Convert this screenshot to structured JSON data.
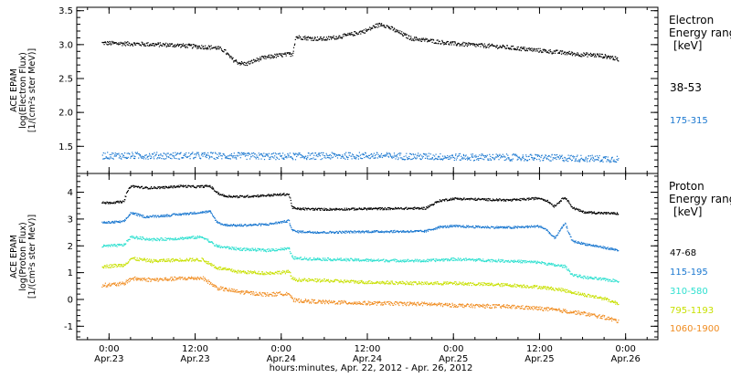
{
  "figure": {
    "xlabel": "hours:minutes, Apr. 22, 2012 - Apr. 26, 2012",
    "x_tick_times": [
      "0:00",
      "12:00",
      "0:00",
      "12:00",
      "0:00",
      "12:00",
      "0:00"
    ],
    "x_tick_dates": [
      "Apr.23",
      "Apr.23",
      "Apr.24",
      "Apr.24",
      "Apr.25",
      "Apr.25",
      "Apr.26"
    ],
    "x_tick_hours": [
      0,
      12,
      24,
      36,
      48,
      60,
      72
    ]
  },
  "chart_data": [
    {
      "type": "scatter",
      "panel": "electron",
      "ylabel_lines": [
        "ACE EPAM",
        "log(Electron Flux)",
        "[1/(cm²s ster MeV)]"
      ],
      "ylim": [
        1.1,
        3.55
      ],
      "y_ticks": [
        1.5,
        2.0,
        2.5,
        3.0,
        3.5
      ],
      "y_tick_labels": [
        "1.5",
        "2.0",
        "2.5",
        "3.0",
        "3.5"
      ],
      "xlim_hours": [
        -4.5,
        76.5
      ],
      "legend_title": [
        "Electron",
        "Energy ranges",
        "[keV]"
      ],
      "series": [
        {
          "name": "38-53",
          "color": "#000000",
          "x_hours": [
            -1,
            3,
            6,
            9,
            12,
            15,
            16,
            17,
            18,
            19,
            20,
            21,
            22,
            23,
            25.5,
            26,
            28,
            30,
            33,
            36,
            37,
            38,
            39,
            42,
            48,
            54,
            60,
            64,
            66,
            68,
            70,
            71
          ],
          "y": [
            3.03,
            3.02,
            3.01,
            3.0,
            2.98,
            2.96,
            2.92,
            2.8,
            2.74,
            2.72,
            2.76,
            2.8,
            2.82,
            2.84,
            2.87,
            3.12,
            3.1,
            3.09,
            3.14,
            3.22,
            3.28,
            3.31,
            3.26,
            3.1,
            3.02,
            2.98,
            2.92,
            2.88,
            2.86,
            2.85,
            2.82,
            2.78
          ],
          "scatter": 0.03
        },
        {
          "name": "175-315",
          "color": "#1b78d0",
          "x_hours": [
            -1,
            12,
            24,
            36,
            48,
            60,
            66,
            71
          ],
          "y": [
            1.37,
            1.37,
            1.36,
            1.37,
            1.35,
            1.34,
            1.33,
            1.32
          ],
          "scatter": 0.05
        }
      ]
    },
    {
      "type": "scatter",
      "panel": "proton",
      "ylabel_lines": [
        "ACE EPAM",
        "log(Proton Flux)",
        "[1/(cm²s ster MeV)]"
      ],
      "ylim": [
        -1.5,
        4.7
      ],
      "y_ticks": [
        -1,
        0,
        1,
        2,
        3,
        4
      ],
      "y_tick_labels": [
        "-1",
        "0",
        "1",
        "2",
        "3",
        "4"
      ],
      "xlim_hours": [
        -4.5,
        76.5
      ],
      "legend_title": [
        "Proton",
        "Energy ranges",
        "[keV]"
      ],
      "series": [
        {
          "name": "47-68",
          "color": "#000000",
          "x_hours": [
            -1,
            2,
            2.5,
            3,
            5,
            8,
            10,
            12,
            14,
            15,
            16,
            18,
            22,
            25,
            25.5,
            26,
            30,
            36,
            44,
            46,
            48,
            52,
            56,
            60,
            61,
            62,
            63.5,
            64.5,
            66,
            68,
            71
          ],
          "y": [
            3.62,
            3.66,
            4.05,
            4.25,
            4.18,
            4.2,
            4.25,
            4.22,
            4.25,
            4.0,
            3.88,
            3.85,
            3.9,
            3.95,
            3.45,
            3.4,
            3.38,
            3.4,
            3.42,
            3.7,
            3.78,
            3.75,
            3.72,
            3.8,
            3.7,
            3.5,
            3.85,
            3.45,
            3.28,
            3.25,
            3.22
          ],
          "scatter": 0.04
        },
        {
          "name": "115-195",
          "color": "#1b78d0",
          "x_hours": [
            -1,
            2,
            3,
            5,
            8,
            10,
            12,
            14,
            15,
            16,
            18,
            22,
            25,
            25.5,
            26,
            30,
            36,
            44,
            46,
            48,
            52,
            56,
            60,
            61,
            62,
            63.5,
            64.5,
            66,
            68,
            71
          ],
          "y": [
            2.88,
            2.92,
            3.25,
            3.1,
            3.15,
            3.2,
            3.25,
            3.3,
            2.9,
            2.8,
            2.78,
            2.82,
            2.95,
            2.6,
            2.55,
            2.52,
            2.55,
            2.56,
            2.72,
            2.75,
            2.72,
            2.7,
            2.75,
            2.6,
            2.3,
            2.85,
            2.2,
            2.1,
            2.0,
            1.85
          ],
          "scatter": 0.04
        },
        {
          "name": "310-580",
          "color": "#2fe0d0",
          "x_hours": [
            -1,
            2,
            3,
            6,
            10,
            13,
            15,
            18,
            22,
            25,
            25.5,
            26,
            30,
            36,
            44,
            48,
            56,
            60,
            62,
            63.5,
            64.5,
            66,
            71
          ],
          "y": [
            2.0,
            2.05,
            2.35,
            2.25,
            2.3,
            2.35,
            2.0,
            1.9,
            1.85,
            1.92,
            1.6,
            1.55,
            1.52,
            1.48,
            1.46,
            1.52,
            1.45,
            1.4,
            1.3,
            1.25,
            0.95,
            0.85,
            0.7
          ],
          "scatter": 0.05
        },
        {
          "name": "795-1193",
          "color": "#c8e000",
          "x_hours": [
            -1,
            2,
            3,
            6,
            10,
            13,
            15,
            18,
            22,
            25,
            25.5,
            26,
            30,
            36,
            44,
            48,
            56,
            60,
            63,
            66,
            69,
            71
          ],
          "y": [
            1.25,
            1.3,
            1.55,
            1.45,
            1.5,
            1.5,
            1.2,
            1.05,
            1.0,
            1.05,
            0.8,
            0.75,
            0.72,
            0.66,
            0.62,
            0.62,
            0.55,
            0.48,
            0.38,
            0.2,
            0.05,
            -0.15
          ],
          "scatter": 0.06
        },
        {
          "name": "1060-1900",
          "color": "#f08c20",
          "x_hours": [
            -1,
            2,
            3,
            6,
            10,
            13,
            15,
            18,
            22,
            25,
            25.5,
            26,
            30,
            36,
            44,
            48,
            56,
            60,
            63,
            66,
            69,
            71
          ],
          "y": [
            0.55,
            0.6,
            0.8,
            0.75,
            0.8,
            0.82,
            0.45,
            0.3,
            0.2,
            0.25,
            0.0,
            -0.02,
            -0.08,
            -0.12,
            -0.15,
            -0.2,
            -0.25,
            -0.32,
            -0.4,
            -0.5,
            -0.65,
            -0.8
          ],
          "scatter": 0.07
        }
      ]
    }
  ]
}
